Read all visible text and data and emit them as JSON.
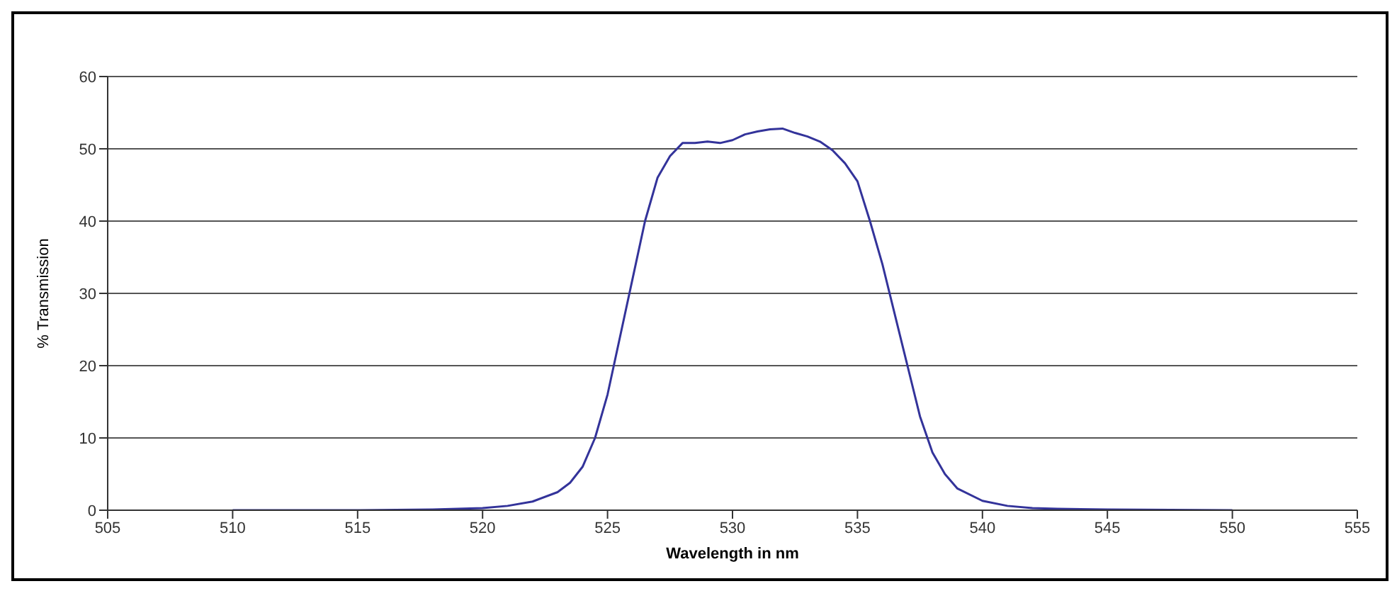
{
  "chart_data": {
    "type": "line",
    "xlabel": "Wavelength in nm",
    "ylabel": "% Transmission",
    "x": [
      510,
      515,
      518,
      520,
      521,
      522,
      523,
      523.5,
      524,
      524.5,
      525,
      525.5,
      526,
      526.5,
      527,
      527.5,
      528,
      528.5,
      529,
      529.5,
      530,
      530.5,
      531,
      531.5,
      532,
      532.5,
      533,
      533.5,
      534,
      534.5,
      535,
      535.5,
      536,
      536.5,
      537,
      537.5,
      538,
      538.5,
      539,
      540,
      541,
      542,
      543,
      545,
      550
    ],
    "series": [
      {
        "color": "#33339a",
        "values": [
          0,
          0,
          0.1,
          0.3,
          0.6,
          1.2,
          2.5,
          3.8,
          6,
          10,
          16,
          24,
          32,
          40,
          46,
          49,
          50.8,
          50.8,
          51,
          50.8,
          51.2,
          52,
          52.4,
          52.7,
          52.8,
          52.2,
          51.7,
          51,
          49.8,
          48,
          45.5,
          40,
          34,
          27,
          20,
          13,
          8,
          5,
          3,
          1.3,
          0.6,
          0.3,
          0.2,
          0.1,
          0
        ]
      }
    ],
    "xlim": [
      505,
      555
    ],
    "xticks": [
      505,
      510,
      515,
      520,
      525,
      530,
      535,
      540,
      545,
      550,
      555
    ],
    "ylim": [
      0,
      60
    ],
    "yticks": [
      0,
      10,
      20,
      30,
      40,
      50,
      60
    ],
    "grid": "y",
    "legend": false,
    "marker": "none",
    "line_style": "solid"
  }
}
